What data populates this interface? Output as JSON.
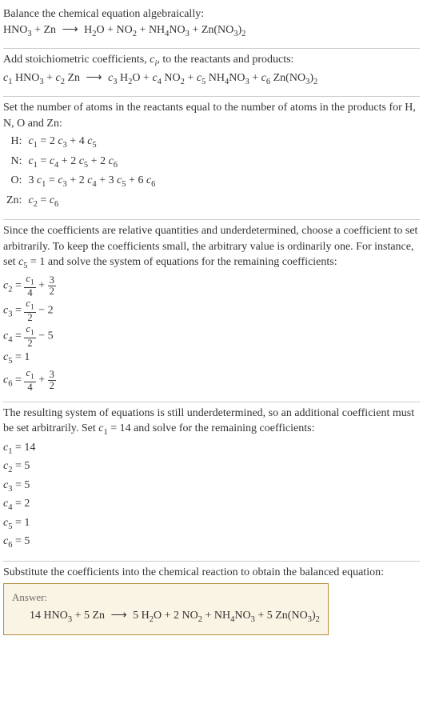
{
  "s1": {
    "l1": "Balance the chemical equation algebraically:",
    "eq": {
      "lhs1": "HNO",
      "lhs1s": "3",
      "plus1": " + ",
      "lhs2": "Zn",
      "arr": "⟶",
      "r1": "H",
      "r1s": "2",
      "r1b": "O",
      "plus2": " + ",
      "r2": "NO",
      "r2s": "2",
      "plus3": " + ",
      "r3": "NH",
      "r3s": "4",
      "r3b": "NO",
      "r3bs": "3",
      "plus4": " + ",
      "r4": "Zn(NO",
      "r4s": "3",
      "r4b": ")",
      "r4bs": "2"
    }
  },
  "s2": {
    "l1a": "Add stoichiometric coefficients, ",
    "ci": "c",
    "cisub": "i",
    "l1b": ", to the reactants and products:",
    "eq": {
      "c1": "c",
      "c1s": "1",
      "t1": " HNO",
      "t1s": "3",
      "p1": " + ",
      "c2": "c",
      "c2s": "2",
      "t2": " Zn",
      "arr": "⟶",
      "c3": "c",
      "c3s": "3",
      "t3": " H",
      "t3s": "2",
      "t3b": "O",
      "p2": " + ",
      "c4": "c",
      "c4s": "4",
      "t4": " NO",
      "t4s": "2",
      "p3": " + ",
      "c5": "c",
      "c5s": "5",
      "t5": " NH",
      "t5s": "4",
      "t5b": "NO",
      "t5bs": "3",
      "p4": " + ",
      "c6": "c",
      "c6s": "6",
      "t6": " Zn(NO",
      "t6s": "3",
      "t6b": ")",
      "t6bs": "2"
    }
  },
  "s3": {
    "l1": "Set the number of atoms in the reactants equal to the number of atoms in the products for H, N, O and Zn:",
    "rows": [
      {
        "el": "H:",
        "a": "c",
        "as": "1",
        "mid": " = 2 ",
        "b": "c",
        "bs": "3",
        "mid2": " + 4 ",
        "d": "c",
        "ds": "5",
        "tail": ""
      },
      {
        "el": "N:",
        "a": "c",
        "as": "1",
        "mid": " = ",
        "b": "c",
        "bs": "4",
        "mid2": " + 2 ",
        "d": "c",
        "ds": "5",
        "mid3": " + 2 ",
        "e": "c",
        "es": "6",
        "tail": ""
      }
    ],
    "rowO": {
      "el": "O:",
      "pre": "3 ",
      "a": "c",
      "as": "1",
      "mid": " = ",
      "b": "c",
      "bs": "3",
      "mid2": " + 2 ",
      "d": "c",
      "ds": "4",
      "mid3": " + 3 ",
      "e": "c",
      "es": "5",
      "mid4": " + 6 ",
      "f": "c",
      "fs": "6"
    },
    "rowZn": {
      "el": "Zn:",
      "a": "c",
      "as": "2",
      "mid": " = ",
      "b": "c",
      "bs": "6"
    }
  },
  "s4": {
    "l1": "Since the coefficients are relative quantities and underdetermined, choose a coefficient to set arbitrarily. To keep the coefficients small, the arbitrary value is ordinarily one. For instance, set ",
    "cv": "c",
    "cvs": "5",
    "l1b": " = 1 and solve the system of equations for the remaining coefficients:",
    "lines": [
      {
        "c": "c",
        "cs": "2",
        "eq": " = ",
        "fn": "c",
        "fns": "1",
        "fd": "4",
        "plus": " + ",
        "gn": "3",
        "gd": "2"
      },
      {
        "c": "c",
        "cs": "3",
        "eq": " = ",
        "fn": "c",
        "fns": "1",
        "fd": "2",
        "tail": " − 2"
      },
      {
        "c": "c",
        "cs": "4",
        "eq": " = ",
        "fn": "c",
        "fns": "1",
        "fd": "2",
        "tail": " − 5"
      }
    ],
    "line5": {
      "c": "c",
      "cs": "5",
      "eq": " = 1"
    },
    "line6": {
      "c": "c",
      "cs": "6",
      "eq": " = ",
      "fn": "c",
      "fns": "1",
      "fd": "4",
      "plus": " + ",
      "gn": "3",
      "gd": "2"
    }
  },
  "s5": {
    "l1": "The resulting system of equations is still underdetermined, so an additional coefficient must be set arbitrarily. Set ",
    "cv": "c",
    "cvs": "1",
    "l1b": " = 14 and solve for the remaining coefficients:",
    "lines": [
      {
        "c": "c",
        "cs": "1",
        "v": " = 14"
      },
      {
        "c": "c",
        "cs": "2",
        "v": " = 5"
      },
      {
        "c": "c",
        "cs": "3",
        "v": " = 5"
      },
      {
        "c": "c",
        "cs": "4",
        "v": " = 2"
      },
      {
        "c": "c",
        "cs": "5",
        "v": " = 1"
      },
      {
        "c": "c",
        "cs": "6",
        "v": " = 5"
      }
    ]
  },
  "s6": {
    "l1": "Substitute the coefficients into the chemical reaction to obtain the balanced equation:"
  },
  "answer": {
    "label": "Answer:",
    "eq": {
      "a": "14 HNO",
      "as": "3",
      "p1": " + 5 Zn",
      "arr": "⟶",
      "b": "5 H",
      "bs": "2",
      "bb": "O",
      "p2": " + 2 NO",
      "p2s": "2",
      "p3": " + NH",
      "p3s": "4",
      "p3b": "NO",
      "p3bs": "3",
      "p4": " + 5 Zn(NO",
      "p4s": "3",
      "p4b": ")",
      "p4bs": "2"
    }
  },
  "colors": {
    "border": "#cccccc",
    "answer_border": "#b08f3a",
    "answer_bg": "#faf4e4",
    "text": "#333333"
  }
}
